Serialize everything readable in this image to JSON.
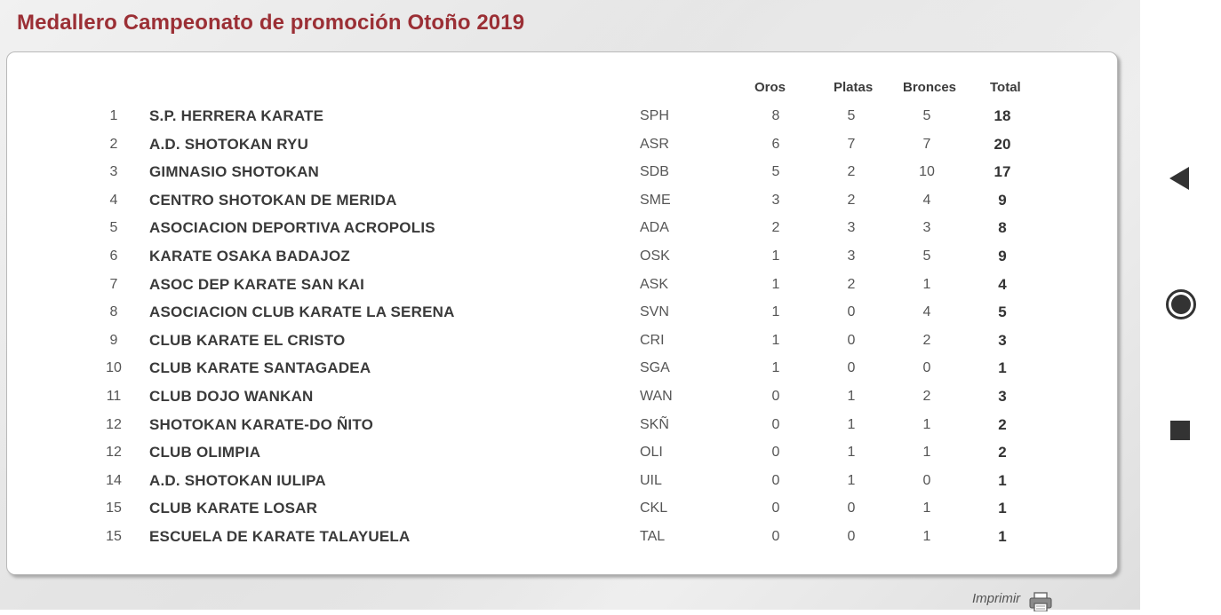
{
  "page": {
    "title": "Medallero Campeonato de promoción Otoño 2019",
    "print_label": "Imprimir"
  },
  "colors": {
    "title": "#9b2f35",
    "nav": "#333333"
  },
  "table": {
    "headers": {
      "golds": "Oros",
      "silvers": "Platas",
      "bronzes": "Bronces",
      "total": "Total"
    },
    "rows": [
      {
        "pos": "1",
        "club": "S.P. HERRERA KARATE",
        "code": "SPH",
        "golds": "8",
        "silvers": "5",
        "bronzes": "5",
        "total": "18"
      },
      {
        "pos": "2",
        "club": "A.D. SHOTOKAN RYU",
        "code": "ASR",
        "golds": "6",
        "silvers": "7",
        "bronzes": "7",
        "total": "20"
      },
      {
        "pos": "3",
        "club": "GIMNASIO SHOTOKAN",
        "code": "SDB",
        "golds": "5",
        "silvers": "2",
        "bronzes": "10",
        "total": "17"
      },
      {
        "pos": "4",
        "club": "CENTRO SHOTOKAN DE MERIDA",
        "code": "SME",
        "golds": "3",
        "silvers": "2",
        "bronzes": "4",
        "total": "9"
      },
      {
        "pos": "5",
        "club": "ASOCIACION DEPORTIVA ACROPOLIS",
        "code": "ADA",
        "golds": "2",
        "silvers": "3",
        "bronzes": "3",
        "total": "8"
      },
      {
        "pos": "6",
        "club": "KARATE OSAKA BADAJOZ",
        "code": "OSK",
        "golds": "1",
        "silvers": "3",
        "bronzes": "5",
        "total": "9"
      },
      {
        "pos": "7",
        "club": "ASOC DEP KARATE SAN KAI",
        "code": "ASK",
        "golds": "1",
        "silvers": "2",
        "bronzes": "1",
        "total": "4"
      },
      {
        "pos": "8",
        "club": "ASOCIACION CLUB KARATE LA SERENA",
        "code": "SVN",
        "golds": "1",
        "silvers": "0",
        "bronzes": "4",
        "total": "5"
      },
      {
        "pos": "9",
        "club": "CLUB KARATE EL CRISTO",
        "code": "CRI",
        "golds": "1",
        "silvers": "0",
        "bronzes": "2",
        "total": "3"
      },
      {
        "pos": "10",
        "club": "CLUB KARATE SANTAGADEA",
        "code": "SGA",
        "golds": "1",
        "silvers": "0",
        "bronzes": "0",
        "total": "1"
      },
      {
        "pos": "11",
        "club": "CLUB DOJO WANKAN",
        "code": "WAN",
        "golds": "0",
        "silvers": "1",
        "bronzes": "2",
        "total": "3"
      },
      {
        "pos": "12",
        "club": "SHOTOKAN KARATE-DO ÑITO",
        "code": "SKÑ",
        "golds": "0",
        "silvers": "1",
        "bronzes": "1",
        "total": "2"
      },
      {
        "pos": "12",
        "club": "CLUB OLIMPIA",
        "code": "OLI",
        "golds": "0",
        "silvers": "1",
        "bronzes": "1",
        "total": "2"
      },
      {
        "pos": "14",
        "club": "A.D. SHOTOKAN IULIPA",
        "code": "UIL",
        "golds": "0",
        "silvers": "1",
        "bronzes": "0",
        "total": "1"
      },
      {
        "pos": "15",
        "club": "CLUB KARATE LOSAR",
        "code": "CKL",
        "golds": "0",
        "silvers": "0",
        "bronzes": "1",
        "total": "1"
      },
      {
        "pos": "15",
        "club": "ESCUELA DE KARATE TALAYUELA",
        "code": "TAL",
        "golds": "0",
        "silvers": "0",
        "bronzes": "1",
        "total": "1"
      }
    ]
  },
  "nav": {
    "icons": [
      "back-triangle-icon",
      "home-circle-icon",
      "recents-square-icon"
    ]
  }
}
